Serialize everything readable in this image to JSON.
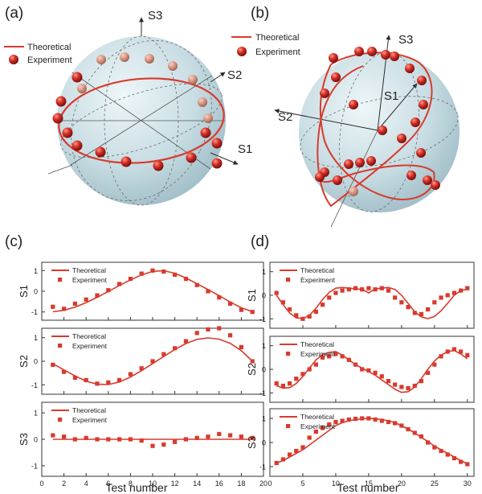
{
  "colors": {
    "accent": "#d83a2e",
    "dark": "#2b2b2b",
    "sphere": "#c6dce3"
  },
  "panels": {
    "a": {
      "label": "(a)",
      "axes": [
        "S3",
        "S2",
        "S1"
      ],
      "legend": [
        "Theoretical",
        "Experiment"
      ]
    },
    "b": {
      "label": "(b)",
      "axes": [
        "S3",
        "S2",
        "S1"
      ],
      "legend": [
        "Theoretical",
        "Experiment"
      ]
    },
    "c": {
      "label": "(c)",
      "xlabel": "Test number"
    },
    "d": {
      "label": "(d)",
      "xlabel": "Test number"
    }
  },
  "chart_data": [
    {
      "panel": "c",
      "type": "line",
      "subplot": "S1",
      "ylabel": "S1",
      "xlim": [
        0,
        20
      ],
      "ylim": [
        -1.4,
        1.4
      ],
      "xticks": [
        0,
        2,
        4,
        6,
        8,
        10,
        12,
        14,
        16,
        18,
        20
      ],
      "yticks": [
        -1,
        0,
        1
      ],
      "legend": [
        "Theoretical",
        "Experiment"
      ],
      "series": [
        {
          "name": "Theoretical",
          "style": "line",
          "x": [
            1,
            2,
            3,
            4,
            5,
            6,
            7,
            8,
            9,
            10,
            11,
            12,
            13,
            14,
            15,
            16,
            17,
            18,
            19
          ],
          "y": [
            -0.99,
            -0.92,
            -0.77,
            -0.55,
            -0.29,
            -0.01,
            0.28,
            0.55,
            0.79,
            0.96,
            0.99,
            0.87,
            0.64,
            0.36,
            0.08,
            -0.21,
            -0.52,
            -0.8,
            -0.98
          ]
        },
        {
          "name": "Experiment",
          "style": "marker",
          "x": [
            1,
            2,
            3,
            4,
            5,
            6,
            7,
            8,
            9,
            10,
            11,
            12,
            13,
            14,
            15,
            16,
            17,
            18,
            19
          ],
          "y": [
            -0.75,
            -0.85,
            -0.6,
            -0.4,
            -0.2,
            0.05,
            0.35,
            0.6,
            0.85,
            1.0,
            0.95,
            0.8,
            0.6,
            0.3,
            0.0,
            -0.3,
            -0.6,
            -0.9,
            -1.0
          ]
        }
      ]
    },
    {
      "panel": "c",
      "type": "line",
      "subplot": "S2",
      "ylabel": "S2",
      "xlim": [
        0,
        20
      ],
      "ylim": [
        -1.4,
        1.4
      ],
      "yticks": [
        -1,
        0,
        1
      ],
      "legend": [
        "Theoretical",
        "Experiment"
      ],
      "series": [
        {
          "name": "Theoretical",
          "style": "line",
          "x": [
            1,
            2,
            3,
            4,
            5,
            6,
            7,
            8,
            9,
            10,
            11,
            12,
            13,
            14,
            15,
            16,
            17,
            18,
            19
          ],
          "y": [
            -0.1,
            -0.37,
            -0.62,
            -0.85,
            -0.97,
            -0.99,
            -0.88,
            -0.67,
            -0.4,
            -0.1,
            0.2,
            0.5,
            0.75,
            0.93,
            0.99,
            0.94,
            0.76,
            0.45,
            0.0
          ]
        },
        {
          "name": "Experiment",
          "style": "marker",
          "x": [
            1,
            2,
            3,
            4,
            5,
            6,
            7,
            8,
            9,
            10,
            11,
            12,
            13,
            14,
            15,
            16,
            17,
            18,
            19
          ],
          "y": [
            -0.15,
            -0.45,
            -0.7,
            -0.8,
            -0.95,
            -0.9,
            -0.8,
            -0.55,
            -0.3,
            0.0,
            0.3,
            0.55,
            0.85,
            1.2,
            1.35,
            1.4,
            1.1,
            0.6,
            0.0
          ]
        }
      ]
    },
    {
      "panel": "c",
      "type": "line",
      "subplot": "S3",
      "ylabel": "S3",
      "xlim": [
        0,
        20
      ],
      "ylim": [
        -1.4,
        1.4
      ],
      "yticks": [
        -1,
        0,
        1
      ],
      "legend": [
        "Theoretical",
        "Experiment"
      ],
      "series": [
        {
          "name": "Theoretical",
          "style": "line",
          "x": [
            1,
            19
          ],
          "y": [
            0,
            0
          ]
        },
        {
          "name": "Experiment",
          "style": "marker",
          "x": [
            1,
            2,
            3,
            4,
            5,
            6,
            7,
            8,
            9,
            10,
            11,
            12,
            13,
            14,
            15,
            16,
            17,
            18,
            19
          ],
          "y": [
            0.15,
            0.1,
            0.0,
            0.05,
            0.0,
            0.0,
            0.0,
            0.0,
            -0.05,
            -0.25,
            -0.2,
            -0.1,
            0.0,
            0.05,
            0.1,
            0.2,
            0.15,
            0.1,
            0.05
          ]
        }
      ]
    },
    {
      "panel": "d",
      "type": "line",
      "subplot": "S1",
      "ylabel": "S1",
      "xlim": [
        0,
        31
      ],
      "ylim": [
        -1.4,
        1.4
      ],
      "xticks": [
        0,
        5,
        10,
        15,
        20,
        25,
        30
      ],
      "yticks": [
        -1,
        0,
        1
      ],
      "legend": [
        "Theoretical",
        "Experiment"
      ],
      "series": [
        {
          "name": "Theoretical",
          "style": "line",
          "x": [
            1,
            2,
            3,
            4,
            5,
            6,
            7,
            8,
            9,
            10,
            11,
            12,
            13,
            14,
            15,
            16,
            17,
            18,
            19,
            20,
            21,
            22,
            23,
            24,
            25,
            26,
            27,
            28,
            29,
            30
          ],
          "y": [
            0.0,
            -0.4,
            -0.75,
            -0.96,
            -0.99,
            -0.85,
            -0.55,
            -0.18,
            0.12,
            0.3,
            0.33,
            0.3,
            0.27,
            0.25,
            0.1,
            0.27,
            0.3,
            0.33,
            0.25,
            0.0,
            -0.35,
            -0.7,
            -0.92,
            -0.99,
            -0.9,
            -0.66,
            -0.34,
            0.0,
            0.2,
            0.25
          ]
        },
        {
          "name": "Experiment",
          "style": "marker",
          "x": [
            1,
            2,
            3,
            4,
            5,
            6,
            7,
            8,
            9,
            10,
            11,
            12,
            13,
            14,
            15,
            16,
            17,
            18,
            19,
            20,
            21,
            22,
            23,
            24,
            25,
            26,
            27,
            28,
            29,
            30
          ],
          "y": [
            0.1,
            -0.3,
            -0.6,
            -0.85,
            -1.0,
            -0.9,
            -0.7,
            -0.4,
            -0.1,
            0.1,
            0.2,
            0.25,
            0.3,
            0.25,
            0.3,
            0.25,
            0.3,
            0.2,
            -0.1,
            -0.3,
            -0.5,
            -0.75,
            -0.8,
            -0.6,
            -0.3,
            -0.1,
            0.0,
            0.1,
            0.2,
            0.3
          ]
        }
      ]
    },
    {
      "panel": "d",
      "type": "line",
      "subplot": "S2",
      "ylabel": "S2",
      "xlim": [
        0,
        31
      ],
      "ylim": [
        -1.4,
        1.4
      ],
      "yticks": [
        -1,
        0,
        1
      ],
      "legend": [
        "Theoretical",
        "Experiment"
      ],
      "series": [
        {
          "name": "Theoretical",
          "style": "line",
          "x": [
            1,
            2,
            3,
            4,
            5,
            6,
            7,
            8,
            9,
            10,
            11,
            12,
            13,
            14,
            15,
            16,
            17,
            18,
            19,
            20,
            21,
            22,
            23,
            24,
            25,
            26,
            27,
            28,
            29,
            30
          ],
          "y": [
            -0.7,
            -0.8,
            -0.78,
            -0.6,
            -0.3,
            0.05,
            0.4,
            0.62,
            0.72,
            0.75,
            0.6,
            0.4,
            0.2,
            0.05,
            -0.1,
            -0.25,
            -0.45,
            -0.65,
            -0.85,
            -0.98,
            -0.95,
            -0.75,
            -0.4,
            0.0,
            0.35,
            0.6,
            0.75,
            0.8,
            0.65,
            0.45
          ]
        },
        {
          "name": "Experiment",
          "style": "marker",
          "x": [
            1,
            2,
            3,
            4,
            5,
            6,
            7,
            8,
            9,
            10,
            11,
            12,
            13,
            14,
            15,
            16,
            17,
            18,
            19,
            20,
            21,
            22,
            23,
            24,
            25,
            26,
            27,
            28,
            29,
            30
          ],
          "y": [
            -0.6,
            -0.7,
            -0.6,
            -0.4,
            -0.2,
            0.0,
            0.2,
            0.5,
            0.55,
            0.65,
            0.55,
            0.4,
            0.2,
            0.0,
            -0.05,
            -0.15,
            -0.3,
            -0.5,
            -0.65,
            -0.75,
            -0.8,
            -0.7,
            -0.5,
            -0.15,
            0.2,
            0.55,
            0.75,
            0.85,
            0.75,
            0.6
          ]
        }
      ]
    },
    {
      "panel": "d",
      "type": "line",
      "subplot": "S3",
      "ylabel": "S3",
      "xlim": [
        0,
        31
      ],
      "ylim": [
        -1.4,
        1.4
      ],
      "yticks": [
        -1,
        0,
        1
      ],
      "legend": [
        "Theoretical",
        "Experiment"
      ],
      "series": [
        {
          "name": "Theoretical",
          "style": "line",
          "x": [
            1,
            2,
            3,
            4,
            5,
            6,
            7,
            8,
            9,
            10,
            11,
            12,
            13,
            14,
            15,
            16,
            17,
            18,
            19,
            20,
            21,
            22,
            23,
            24,
            25,
            26,
            27,
            28,
            29,
            30
          ],
          "y": [
            -0.85,
            -0.75,
            -0.6,
            -0.45,
            -0.3,
            -0.1,
            0.1,
            0.3,
            0.5,
            0.7,
            0.82,
            0.9,
            0.95,
            0.98,
            1.0,
            0.99,
            0.95,
            0.9,
            0.82,
            0.7,
            0.55,
            0.4,
            0.2,
            0.05,
            -0.15,
            -0.3,
            -0.45,
            -0.6,
            -0.75,
            -0.88
          ]
        },
        {
          "name": "Experiment",
          "style": "marker",
          "x": [
            1,
            2,
            3,
            4,
            5,
            6,
            7,
            8,
            9,
            10,
            11,
            12,
            13,
            14,
            15,
            16,
            17,
            18,
            19,
            20,
            21,
            22,
            23,
            24,
            25,
            26,
            27,
            28,
            29,
            30
          ],
          "y": [
            -0.85,
            -0.7,
            -0.5,
            -0.35,
            -0.2,
            0.2,
            0.45,
            0.6,
            0.75,
            0.85,
            0.9,
            0.95,
            0.98,
            1.0,
            1.0,
            0.95,
            0.9,
            0.85,
            0.8,
            0.7,
            0.55,
            0.4,
            0.25,
            0.0,
            -0.2,
            -0.35,
            -0.5,
            -0.65,
            -0.8,
            -0.9
          ]
        }
      ]
    }
  ]
}
